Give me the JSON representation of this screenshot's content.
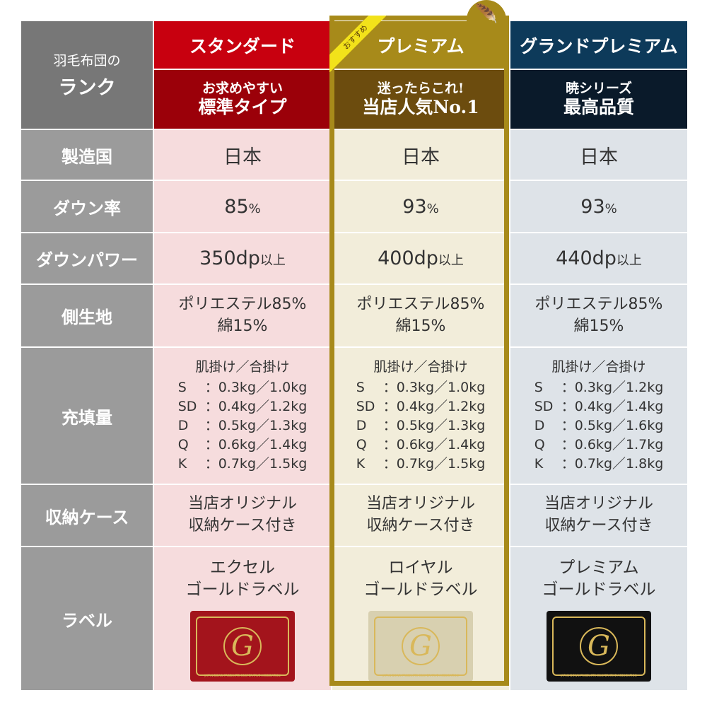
{
  "header": {
    "corner_line1": "羽毛布団の",
    "corner_line2": "ランク",
    "columns": [
      {
        "title": "スタンダード",
        "sub1": "お求めやすい",
        "sub2": "標準タイプ",
        "title_bg": "#c8000f",
        "sub_bg": "#9b0009"
      },
      {
        "title": "プレミアム",
        "sub1": "迷ったらこれ!",
        "sub2": "当店人気No.1",
        "title_bg": "#a78a1a",
        "sub_bg": "#6c4c0e",
        "badge": "おすすめ",
        "icon": "feather-icon"
      },
      {
        "title": "グランドプレミアム",
        "sub1": "暁シリーズ",
        "sub2": "最高品質",
        "title_bg": "#0d3a5a",
        "sub_bg": "#0a1a2a"
      }
    ]
  },
  "rows": {
    "origin": {
      "label": "製造国",
      "values": [
        "日本",
        "日本",
        "日本"
      ]
    },
    "down_ratio": {
      "label": "ダウン率",
      "values": [
        "85",
        "93",
        "93"
      ],
      "unit": "%"
    },
    "down_power": {
      "label": "ダウンパワー",
      "values": [
        "350dp",
        "400dp",
        "440dp"
      ],
      "suffix": "以上"
    },
    "fabric": {
      "label": "側生地",
      "line1": "ポリエステル85%",
      "line2": "綿15%"
    },
    "fill": {
      "label": "充填量",
      "heading": "肌掛け／合掛け",
      "sizes": [
        "S",
        "SD",
        "D",
        "Q",
        "K"
      ],
      "values": [
        [
          "：0.3kg／1.0kg",
          "：0.4kg／1.2kg",
          "：0.5kg／1.3kg",
          "：0.6kg／1.4kg",
          "：0.7kg／1.5kg"
        ],
        [
          "：0.3kg／1.0kg",
          "：0.4kg／1.2kg",
          "：0.5kg／1.3kg",
          "：0.6kg／1.4kg",
          "：0.7kg／1.5kg"
        ],
        [
          "：0.3kg／1.2kg",
          "：0.4kg／1.4kg",
          "：0.5kg／1.6kg",
          "：0.6kg／1.7kg",
          "：0.7kg／1.8kg"
        ]
      ]
    },
    "case": {
      "label": "収納ケース",
      "line1": "当店オリジナル",
      "line2": "収納ケース付き"
    },
    "tag": {
      "label": "ラベル",
      "values": [
        [
          "エクセル",
          "ゴールドラベル"
        ],
        [
          "ロイヤル",
          "ゴールドラベル"
        ],
        [
          "プレミアム",
          "ゴールドラベル"
        ]
      ],
      "card_colors": [
        "#a3141c",
        "#d8d0b0",
        "#111111"
      ],
      "card_text": "JAPAN DOWN PRODUCTS COOPERATIVE ASSOCIATION",
      "card_letter": "G"
    }
  }
}
